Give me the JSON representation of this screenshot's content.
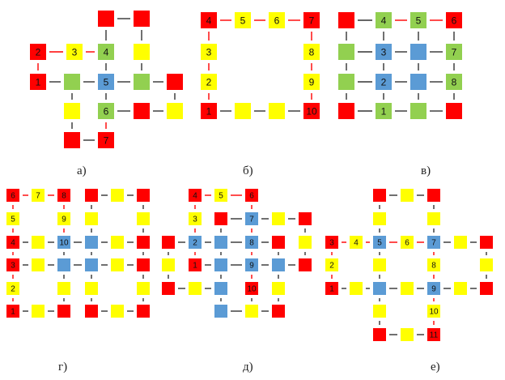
{
  "colors": {
    "red": "#ff0000",
    "yellow": "#ffff00",
    "green": "#92d050",
    "blue": "#5b9bd5",
    "link_black": "#333333",
    "link_red": "#ff0000"
  },
  "panels": [
    {
      "caption": "а)",
      "nodes": [
        {
          "id": "n1",
          "c": "red",
          "t": "1"
        },
        {
          "id": "n2",
          "c": "red",
          "t": "2"
        },
        {
          "id": "n3",
          "c": "yellow",
          "t": "3"
        },
        {
          "id": "n4",
          "c": "green",
          "t": "4"
        },
        {
          "id": "n5",
          "c": "blue",
          "t": "5"
        },
        {
          "id": "n6",
          "c": "green",
          "t": "6"
        },
        {
          "id": "n7",
          "c": "red",
          "t": "7"
        },
        {
          "id": "a1",
          "c": "red",
          "t": ""
        },
        {
          "id": "a2",
          "c": "red",
          "t": ""
        },
        {
          "id": "a3",
          "c": "yellow",
          "t": ""
        },
        {
          "id": "a4",
          "c": "green",
          "t": ""
        },
        {
          "id": "a5",
          "c": "green",
          "t": ""
        },
        {
          "id": "a6",
          "c": "red",
          "t": ""
        },
        {
          "id": "a7",
          "c": "yellow",
          "t": ""
        },
        {
          "id": "a8",
          "c": "red",
          "t": ""
        },
        {
          "id": "a9",
          "c": "yellow",
          "t": ""
        },
        {
          "id": "a10",
          "c": "red",
          "t": ""
        }
      ]
    },
    {
      "caption": "б)",
      "nodes": [
        {
          "id": "n1",
          "c": "red",
          "t": "1"
        },
        {
          "id": "n2",
          "c": "yellow",
          "t": "2"
        },
        {
          "id": "n3",
          "c": "yellow",
          "t": "3"
        },
        {
          "id": "n4",
          "c": "red",
          "t": "4"
        },
        {
          "id": "n5",
          "c": "yellow",
          "t": "5"
        },
        {
          "id": "n6",
          "c": "yellow",
          "t": "6"
        },
        {
          "id": "n7",
          "c": "red",
          "t": "7"
        },
        {
          "id": "n8",
          "c": "yellow",
          "t": "8"
        },
        {
          "id": "n9",
          "c": "yellow",
          "t": "9"
        },
        {
          "id": "n10",
          "c": "red",
          "t": "10"
        },
        {
          "id": "b1",
          "c": "yellow",
          "t": ""
        },
        {
          "id": "b2",
          "c": "yellow",
          "t": ""
        }
      ]
    },
    {
      "caption": "в)",
      "nodes": [
        {
          "id": "n1",
          "c": "green",
          "t": "1"
        },
        {
          "id": "n2",
          "c": "blue",
          "t": "2"
        },
        {
          "id": "n3",
          "c": "blue",
          "t": "3"
        },
        {
          "id": "n4",
          "c": "green",
          "t": "4"
        },
        {
          "id": "n5",
          "c": "green",
          "t": "5"
        },
        {
          "id": "n6",
          "c": "red",
          "t": "6"
        },
        {
          "id": "n7",
          "c": "green",
          "t": "7"
        },
        {
          "id": "n8",
          "c": "green",
          "t": "8"
        },
        {
          "id": "c1",
          "c": "red",
          "t": ""
        },
        {
          "id": "c2",
          "c": "green",
          "t": ""
        },
        {
          "id": "c3",
          "c": "green",
          "t": ""
        },
        {
          "id": "c4",
          "c": "red",
          "t": ""
        },
        {
          "id": "c5",
          "c": "blue",
          "t": ""
        },
        {
          "id": "c6",
          "c": "blue",
          "t": ""
        },
        {
          "id": "c7",
          "c": "green",
          "t": ""
        },
        {
          "id": "c8",
          "c": "red",
          "t": ""
        }
      ]
    },
    {
      "caption": "г)",
      "nodes": [
        {
          "id": "n1",
          "c": "red",
          "t": "1"
        },
        {
          "id": "n2",
          "c": "yellow",
          "t": "2"
        },
        {
          "id": "n3",
          "c": "red",
          "t": "3"
        },
        {
          "id": "n4",
          "c": "red",
          "t": "4"
        },
        {
          "id": "n5",
          "c": "yellow",
          "t": "5"
        },
        {
          "id": "n6",
          "c": "red",
          "t": "6"
        },
        {
          "id": "n7",
          "c": "yellow",
          "t": "7"
        },
        {
          "id": "n8",
          "c": "red",
          "t": "8"
        },
        {
          "id": "n9",
          "c": "yellow",
          "t": "9"
        },
        {
          "id": "n10",
          "c": "blue",
          "t": "10"
        },
        {
          "id": "d1",
          "c": "red",
          "t": ""
        },
        {
          "id": "d2",
          "c": "yellow",
          "t": ""
        },
        {
          "id": "d3",
          "c": "red",
          "t": ""
        },
        {
          "id": "d4",
          "c": "yellow",
          "t": ""
        },
        {
          "id": "d5",
          "c": "yellow",
          "t": ""
        },
        {
          "id": "d6",
          "c": "blue",
          "t": ""
        },
        {
          "id": "d7",
          "c": "yellow",
          "t": ""
        },
        {
          "id": "d8",
          "c": "red",
          "t": ""
        },
        {
          "id": "d9",
          "c": "yellow",
          "t": ""
        },
        {
          "id": "d10",
          "c": "blue",
          "t": ""
        },
        {
          "id": "d11",
          "c": "blue",
          "t": ""
        },
        {
          "id": "d12",
          "c": "yellow",
          "t": ""
        },
        {
          "id": "d13",
          "c": "red",
          "t": ""
        },
        {
          "id": "d14",
          "c": "yellow",
          "t": ""
        },
        {
          "id": "d15",
          "c": "yellow",
          "t": ""
        },
        {
          "id": "d16",
          "c": "red",
          "t": ""
        },
        {
          "id": "d17",
          "c": "yellow",
          "t": ""
        },
        {
          "id": "d18",
          "c": "yellow",
          "t": ""
        },
        {
          "id": "d19",
          "c": "red",
          "t": ""
        },
        {
          "id": "d20",
          "c": "yellow",
          "t": ""
        },
        {
          "id": "d21",
          "c": "yellow",
          "t": ""
        },
        {
          "id": "d22",
          "c": "red",
          "t": ""
        },
        {
          "id": "d23",
          "c": "yellow",
          "t": ""
        },
        {
          "id": "d24",
          "c": "red",
          "t": ""
        }
      ]
    },
    {
      "caption": "д)",
      "nodes": [
        {
          "id": "n1",
          "c": "red",
          "t": "1"
        },
        {
          "id": "n2",
          "c": "blue",
          "t": "2"
        },
        {
          "id": "n3",
          "c": "yellow",
          "t": "3"
        },
        {
          "id": "n4",
          "c": "red",
          "t": "4"
        },
        {
          "id": "n5",
          "c": "yellow",
          "t": "5"
        },
        {
          "id": "n6",
          "c": "red",
          "t": "6"
        },
        {
          "id": "n7",
          "c": "blue",
          "t": "7"
        },
        {
          "id": "n8",
          "c": "blue",
          "t": "8"
        },
        {
          "id": "n9",
          "c": "blue",
          "t": "9"
        },
        {
          "id": "n10",
          "c": "red",
          "t": "10"
        },
        {
          "id": "e1",
          "c": "red",
          "t": ""
        },
        {
          "id": "e2",
          "c": "yellow",
          "t": ""
        },
        {
          "id": "e3",
          "c": "red",
          "t": ""
        },
        {
          "id": "e4",
          "c": "red",
          "t": ""
        },
        {
          "id": "e5",
          "c": "yellow",
          "t": ""
        },
        {
          "id": "e6",
          "c": "red",
          "t": ""
        },
        {
          "id": "e7",
          "c": "blue",
          "t": ""
        },
        {
          "id": "e8",
          "c": "yellow",
          "t": ""
        },
        {
          "id": "e9",
          "c": "red",
          "t": ""
        },
        {
          "id": "e10",
          "c": "blue",
          "t": ""
        },
        {
          "id": "e11",
          "c": "blue",
          "t": ""
        },
        {
          "id": "e12",
          "c": "yellow",
          "t": ""
        },
        {
          "id": "e13",
          "c": "blue",
          "t": ""
        },
        {
          "id": "e14",
          "c": "red",
          "t": ""
        },
        {
          "id": "e15",
          "c": "blue",
          "t": ""
        },
        {
          "id": "e16",
          "c": "yellow",
          "t": ""
        },
        {
          "id": "e17",
          "c": "yellow",
          "t": ""
        },
        {
          "id": "e18",
          "c": "red",
          "t": ""
        },
        {
          "id": "e19",
          "c": "yellow",
          "t": ""
        },
        {
          "id": "e20",
          "c": "red",
          "t": ""
        }
      ]
    },
    {
      "caption": "е)",
      "nodes": [
        {
          "id": "n1",
          "c": "red",
          "t": "1"
        },
        {
          "id": "n2",
          "c": "yellow",
          "t": "2"
        },
        {
          "id": "n3",
          "c": "red",
          "t": "3"
        },
        {
          "id": "n4",
          "c": "yellow",
          "t": "4"
        },
        {
          "id": "n5",
          "c": "blue",
          "t": "5"
        },
        {
          "id": "n6",
          "c": "yellow",
          "t": "6"
        },
        {
          "id": "n7",
          "c": "blue",
          "t": "7"
        },
        {
          "id": "n8",
          "c": "yellow",
          "t": "8"
        },
        {
          "id": "n9",
          "c": "blue",
          "t": "9"
        },
        {
          "id": "n10",
          "c": "yellow",
          "t": "10"
        },
        {
          "id": "n11",
          "c": "red",
          "t": "11"
        },
        {
          "id": "f1",
          "c": "red",
          "t": ""
        },
        {
          "id": "f2",
          "c": "yellow",
          "t": ""
        },
        {
          "id": "f3",
          "c": "red",
          "t": ""
        },
        {
          "id": "f4",
          "c": "yellow",
          "t": ""
        },
        {
          "id": "f5",
          "c": "yellow",
          "t": ""
        },
        {
          "id": "f6",
          "c": "yellow",
          "t": ""
        },
        {
          "id": "f7",
          "c": "yellow",
          "t": ""
        },
        {
          "id": "f8",
          "c": "red",
          "t": ""
        },
        {
          "id": "f9",
          "c": "yellow",
          "t": ""
        },
        {
          "id": "f10",
          "c": "yellow",
          "t": ""
        },
        {
          "id": "f11",
          "c": "blue",
          "t": ""
        },
        {
          "id": "f12",
          "c": "yellow",
          "t": ""
        },
        {
          "id": "f13",
          "c": "red",
          "t": ""
        },
        {
          "id": "f14",
          "c": "yellow",
          "t": ""
        },
        {
          "id": "f15",
          "c": "red",
          "t": ""
        },
        {
          "id": "f16",
          "c": "yellow",
          "t": ""
        }
      ]
    }
  ]
}
